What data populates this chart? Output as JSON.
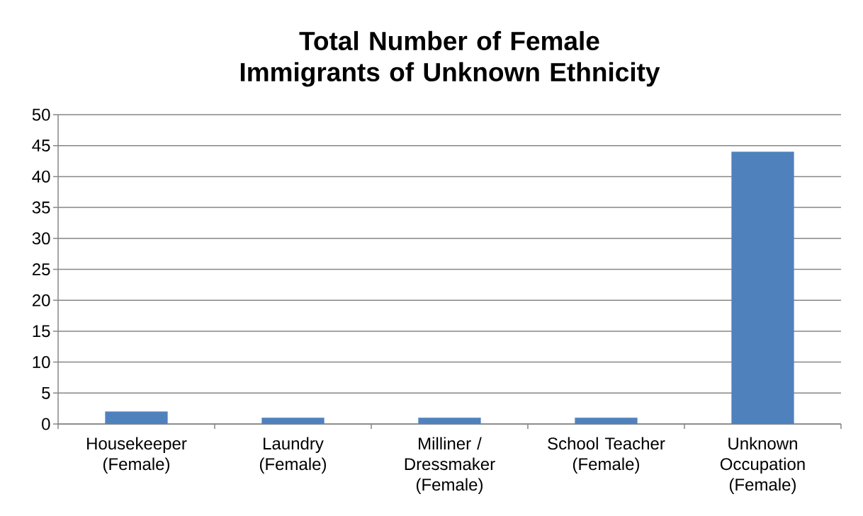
{
  "chart_data": {
    "type": "bar",
    "title": "Total Number of Female Immigrants of Unknown Ethnicity",
    "categories": [
      "Housekeeper (Female)",
      "Laundry (Female)",
      "Milliner / Dressmaker (Female)",
      "School Teacher (Female)",
      "Unknown Occupation (Female)"
    ],
    "values": [
      2,
      1,
      1,
      1,
      44
    ],
    "color": "#4f81bd",
    "ylim": [
      0,
      50
    ],
    "yticks": [
      0,
      5,
      10,
      15,
      20,
      25,
      30,
      35,
      40,
      45,
      50
    ],
    "grid": "y"
  }
}
